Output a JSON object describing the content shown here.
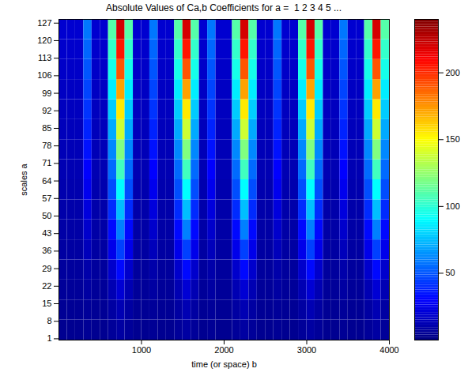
{
  "chart_data": {
    "type": "heatmap",
    "title": "Absolute Values of Ca,b Coefficients for a =  1 2 3 4 5 ...",
    "x_label": "time (or space) b",
    "y_label": "scales a",
    "xlim": [
      0,
      4000
    ],
    "ylim": [
      0.5,
      128.5
    ],
    "xticks": [
      1000,
      2000,
      3000,
      4000
    ],
    "yticks": [
      1,
      8,
      15,
      22,
      29,
      36,
      43,
      50,
      57,
      64,
      71,
      78,
      85,
      92,
      99,
      106,
      113,
      120,
      127
    ],
    "color": "jet",
    "x": [
      0,
      100,
      200,
      300,
      400,
      500,
      600,
      700,
      800,
      900,
      1000,
      1100,
      1200,
      1300,
      1400,
      1500,
      1600,
      1700,
      1800,
      1900,
      2000,
      2100,
      2200,
      2300,
      2400,
      2500,
      2600,
      2700,
      2800,
      2900,
      3000,
      3100,
      3200,
      3300,
      3400,
      3500,
      3600,
      3700,
      3800,
      3900,
      4000
    ],
    "y": [
      0.5,
      8.5,
      16.5,
      24.5,
      32.5,
      40.5,
      48.5,
      56.5,
      64.5,
      72.5,
      80.5,
      88.5,
      96.5,
      104.5,
      112.5,
      120.5,
      128.5
    ],
    "cells": [
      [
        4,
        4,
        4,
        5,
        4,
        4,
        6,
        8,
        6,
        4,
        4,
        5,
        4,
        4,
        6,
        8,
        6,
        4,
        5,
        4,
        4,
        6,
        8,
        6,
        4,
        4,
        5,
        4,
        4,
        6,
        8,
        6,
        4,
        4,
        5,
        4,
        4,
        6,
        8,
        6
      ],
      [
        5,
        5,
        5,
        6,
        5,
        5,
        8,
        12,
        8,
        5,
        5,
        6,
        5,
        5,
        8,
        12,
        8,
        5,
        6,
        5,
        5,
        8,
        12,
        8,
        5,
        5,
        6,
        5,
        5,
        8,
        12,
        8,
        5,
        5,
        6,
        5,
        5,
        8,
        12,
        8
      ],
      [
        6,
        6,
        6,
        8,
        6,
        6,
        12,
        20,
        12,
        6,
        6,
        8,
        6,
        6,
        12,
        20,
        12,
        6,
        8,
        6,
        6,
        12,
        20,
        12,
        6,
        6,
        8,
        6,
        6,
        12,
        20,
        12,
        6,
        6,
        8,
        6,
        6,
        12,
        20,
        12
      ],
      [
        7,
        7,
        7,
        10,
        7,
        7,
        18,
        32,
        18,
        7,
        7,
        10,
        7,
        7,
        18,
        32,
        18,
        7,
        10,
        7,
        7,
        18,
        32,
        18,
        7,
        7,
        10,
        7,
        7,
        18,
        32,
        18,
        7,
        7,
        10,
        7,
        7,
        18,
        32,
        18
      ],
      [
        8,
        8,
        8,
        14,
        8,
        8,
        25,
        45,
        25,
        8,
        8,
        14,
        8,
        8,
        25,
        45,
        25,
        8,
        14,
        8,
        8,
        25,
        45,
        25,
        8,
        8,
        14,
        8,
        8,
        25,
        45,
        25,
        8,
        8,
        14,
        8,
        8,
        25,
        45,
        25
      ],
      [
        9,
        9,
        9,
        18,
        9,
        9,
        32,
        60,
        32,
        9,
        9,
        18,
        9,
        9,
        32,
        60,
        32,
        9,
        18,
        9,
        9,
        32,
        60,
        32,
        9,
        9,
        18,
        9,
        9,
        32,
        60,
        32,
        9,
        9,
        18,
        9,
        9,
        32,
        60,
        32
      ],
      [
        10,
        10,
        10,
        22,
        10,
        10,
        40,
        75,
        40,
        10,
        10,
        22,
        10,
        10,
        40,
        75,
        40,
        10,
        22,
        10,
        10,
        40,
        75,
        40,
        10,
        10,
        22,
        10,
        10,
        40,
        75,
        40,
        10,
        10,
        22,
        10,
        10,
        40,
        75,
        40
      ],
      [
        11,
        11,
        11,
        26,
        11,
        11,
        48,
        90,
        48,
        11,
        11,
        26,
        11,
        11,
        48,
        90,
        48,
        11,
        26,
        11,
        11,
        48,
        90,
        48,
        11,
        11,
        26,
        11,
        11,
        48,
        90,
        48,
        11,
        11,
        26,
        11,
        11,
        48,
        90,
        48
      ],
      [
        12,
        12,
        12,
        30,
        12,
        12,
        55,
        105,
        55,
        12,
        12,
        30,
        12,
        12,
        55,
        105,
        55,
        12,
        30,
        12,
        12,
        55,
        105,
        55,
        12,
        12,
        30,
        12,
        12,
        55,
        105,
        55,
        12,
        12,
        30,
        12,
        12,
        55,
        105,
        55
      ],
      [
        13,
        13,
        13,
        34,
        13,
        13,
        62,
        120,
        62,
        13,
        13,
        34,
        13,
        13,
        62,
        120,
        62,
        13,
        34,
        13,
        13,
        62,
        120,
        62,
        13,
        13,
        34,
        13,
        13,
        62,
        120,
        62,
        13,
        13,
        34,
        13,
        13,
        62,
        120,
        62
      ],
      [
        14,
        14,
        14,
        38,
        14,
        14,
        70,
        138,
        70,
        14,
        14,
        38,
        14,
        14,
        70,
        138,
        70,
        14,
        38,
        14,
        14,
        70,
        138,
        70,
        14,
        14,
        38,
        14,
        14,
        70,
        138,
        70,
        14,
        14,
        38,
        14,
        14,
        70,
        138,
        70
      ],
      [
        15,
        15,
        15,
        42,
        15,
        15,
        78,
        155,
        78,
        15,
        15,
        42,
        15,
        15,
        78,
        155,
        78,
        15,
        42,
        15,
        15,
        78,
        155,
        78,
        15,
        15,
        42,
        15,
        15,
        78,
        155,
        78,
        15,
        15,
        42,
        15,
        15,
        78,
        155,
        78
      ],
      [
        16,
        16,
        16,
        46,
        16,
        16,
        86,
        172,
        86,
        16,
        16,
        46,
        16,
        16,
        86,
        172,
        86,
        16,
        46,
        16,
        16,
        86,
        172,
        86,
        16,
        16,
        46,
        16,
        16,
        86,
        172,
        86,
        16,
        16,
        46,
        16,
        16,
        86,
        172,
        86
      ],
      [
        17,
        17,
        17,
        50,
        17,
        17,
        95,
        190,
        95,
        17,
        17,
        50,
        17,
        17,
        95,
        190,
        95,
        17,
        50,
        17,
        17,
        95,
        190,
        95,
        17,
        17,
        50,
        17,
        17,
        95,
        190,
        95,
        17,
        17,
        50,
        17,
        17,
        95,
        190,
        95
      ],
      [
        18,
        18,
        18,
        54,
        18,
        18,
        102,
        205,
        102,
        18,
        18,
        54,
        18,
        18,
        102,
        205,
        102,
        18,
        54,
        18,
        18,
        102,
        205,
        102,
        18,
        18,
        54,
        18,
        18,
        102,
        205,
        102,
        18,
        18,
        54,
        18,
        18,
        102,
        205,
        102
      ],
      [
        19,
        19,
        19,
        58,
        19,
        19,
        110,
        220,
        110,
        19,
        19,
        58,
        19,
        19,
        110,
        220,
        110,
        19,
        58,
        19,
        19,
        110,
        220,
        110,
        19,
        19,
        58,
        19,
        19,
        110,
        220,
        110,
        19,
        19,
        58,
        19,
        19,
        110,
        220,
        110
      ]
    ],
    "colorbar_range": [
      0,
      240
    ],
    "colorbar_ticks": [
      50,
      100,
      150,
      200
    ]
  }
}
